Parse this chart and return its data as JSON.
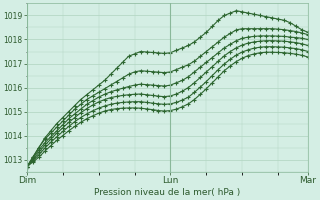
{
  "title": "Pression niveau de la mer( hPa )",
  "bg_color": "#d4eee4",
  "grid_color": "#b0d4c0",
  "line_color": "#2d6630",
  "xlim": [
    0,
    47
  ],
  "ylim": [
    1012.5,
    1019.5
  ],
  "yticks": [
    1013,
    1014,
    1015,
    1016,
    1017,
    1018,
    1019
  ],
  "xtick_labels": [
    "Dim",
    "Lun",
    "Mar"
  ],
  "xtick_positions": [
    0,
    24,
    47
  ],
  "series": [
    [
      1012.7,
      1013.1,
      1013.5,
      1013.9,
      1014.2,
      1014.5,
      1014.75,
      1015.0,
      1015.25,
      1015.5,
      1015.7,
      1015.9,
      1016.1,
      1016.3,
      1016.55,
      1016.8,
      1017.05,
      1017.3,
      1017.4,
      1017.5,
      1017.48,
      1017.46,
      1017.44,
      1017.42,
      1017.45,
      1017.55,
      1017.65,
      1017.75,
      1017.9,
      1018.1,
      1018.3,
      1018.55,
      1018.8,
      1019.0,
      1019.1,
      1019.2,
      1019.15,
      1019.1,
      1019.05,
      1019.0,
      1018.95,
      1018.9,
      1018.85,
      1018.8,
      1018.7,
      1018.55,
      1018.4,
      1018.3
    ],
    [
      1012.7,
      1013.1,
      1013.5,
      1013.85,
      1014.1,
      1014.35,
      1014.6,
      1014.85,
      1015.1,
      1015.3,
      1015.5,
      1015.65,
      1015.8,
      1015.95,
      1016.1,
      1016.25,
      1016.4,
      1016.55,
      1016.65,
      1016.7,
      1016.68,
      1016.66,
      1016.64,
      1016.62,
      1016.65,
      1016.75,
      1016.85,
      1016.95,
      1017.1,
      1017.3,
      1017.5,
      1017.7,
      1017.9,
      1018.1,
      1018.25,
      1018.4,
      1018.45,
      1018.45,
      1018.45,
      1018.45,
      1018.45,
      1018.45,
      1018.43,
      1018.41,
      1018.37,
      1018.33,
      1018.27,
      1018.2
    ],
    [
      1012.7,
      1013.05,
      1013.4,
      1013.7,
      1013.95,
      1014.2,
      1014.45,
      1014.7,
      1014.9,
      1015.1,
      1015.3,
      1015.45,
      1015.6,
      1015.72,
      1015.82,
      1015.9,
      1015.97,
      1016.04,
      1016.1,
      1016.14,
      1016.12,
      1016.1,
      1016.08,
      1016.06,
      1016.1,
      1016.2,
      1016.3,
      1016.45,
      1016.65,
      1016.85,
      1017.05,
      1017.25,
      1017.45,
      1017.65,
      1017.8,
      1017.95,
      1018.05,
      1018.1,
      1018.13,
      1018.15,
      1018.15,
      1018.15,
      1018.14,
      1018.13,
      1018.1,
      1018.08,
      1018.05,
      1018.0
    ],
    [
      1012.7,
      1013.0,
      1013.3,
      1013.6,
      1013.85,
      1014.1,
      1014.32,
      1014.55,
      1014.75,
      1014.95,
      1015.12,
      1015.27,
      1015.4,
      1015.5,
      1015.58,
      1015.63,
      1015.67,
      1015.7,
      1015.72,
      1015.73,
      1015.7,
      1015.67,
      1015.64,
      1015.62,
      1015.65,
      1015.73,
      1015.85,
      1016.0,
      1016.2,
      1016.42,
      1016.65,
      1016.87,
      1017.1,
      1017.32,
      1017.5,
      1017.65,
      1017.77,
      1017.85,
      1017.9,
      1017.93,
      1017.95,
      1017.95,
      1017.94,
      1017.93,
      1017.9,
      1017.87,
      1017.82,
      1017.75
    ],
    [
      1012.7,
      1012.95,
      1013.2,
      1013.48,
      1013.72,
      1013.95,
      1014.17,
      1014.38,
      1014.58,
      1014.75,
      1014.9,
      1015.03,
      1015.14,
      1015.23,
      1015.3,
      1015.35,
      1015.38,
      1015.4,
      1015.41,
      1015.41,
      1015.38,
      1015.35,
      1015.32,
      1015.3,
      1015.32,
      1015.38,
      1015.48,
      1015.6,
      1015.8,
      1016.02,
      1016.25,
      1016.5,
      1016.75,
      1016.98,
      1017.18,
      1017.35,
      1017.48,
      1017.57,
      1017.64,
      1017.68,
      1017.7,
      1017.7,
      1017.69,
      1017.68,
      1017.65,
      1017.62,
      1017.57,
      1017.5
    ],
    [
      1012.7,
      1012.9,
      1013.1,
      1013.35,
      1013.58,
      1013.8,
      1014.0,
      1014.2,
      1014.38,
      1014.55,
      1014.7,
      1014.82,
      1014.93,
      1015.02,
      1015.08,
      1015.12,
      1015.14,
      1015.15,
      1015.15,
      1015.14,
      1015.11,
      1015.08,
      1015.04,
      1015.02,
      1015.04,
      1015.1,
      1015.2,
      1015.32,
      1015.5,
      1015.72,
      1015.95,
      1016.2,
      1016.45,
      1016.7,
      1016.9,
      1017.08,
      1017.22,
      1017.33,
      1017.4,
      1017.45,
      1017.47,
      1017.47,
      1017.46,
      1017.45,
      1017.42,
      1017.39,
      1017.34,
      1017.27
    ]
  ]
}
